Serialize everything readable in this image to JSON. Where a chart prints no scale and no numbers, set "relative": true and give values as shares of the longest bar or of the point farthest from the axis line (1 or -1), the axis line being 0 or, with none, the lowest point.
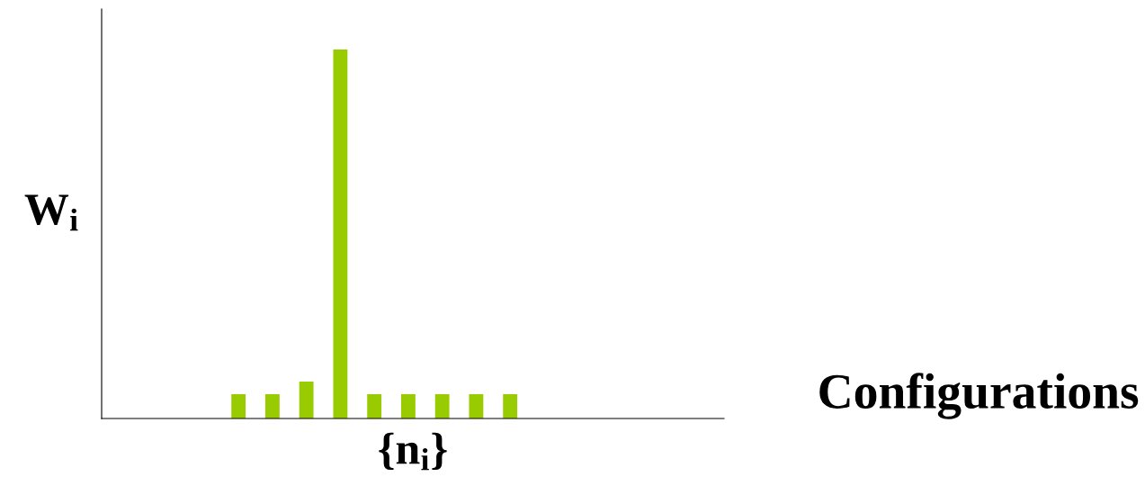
{
  "chart_data": {
    "type": "bar",
    "relative": true,
    "color": "#99cc00",
    "xlabel": "{n$_{i}$}",
    "ylabel": "W$_{i}$",
    "annotations": [
      "Configurations"
    ],
    "categories": [
      null,
      null,
      null,
      null,
      null,
      null,
      null,
      null,
      null
    ],
    "values": [
      0.066,
      0.066,
      0.1,
      1,
      0.066,
      0.066,
      0.066,
      0.066,
      0.066
    ],
    "grid": false,
    "legend": false
  }
}
